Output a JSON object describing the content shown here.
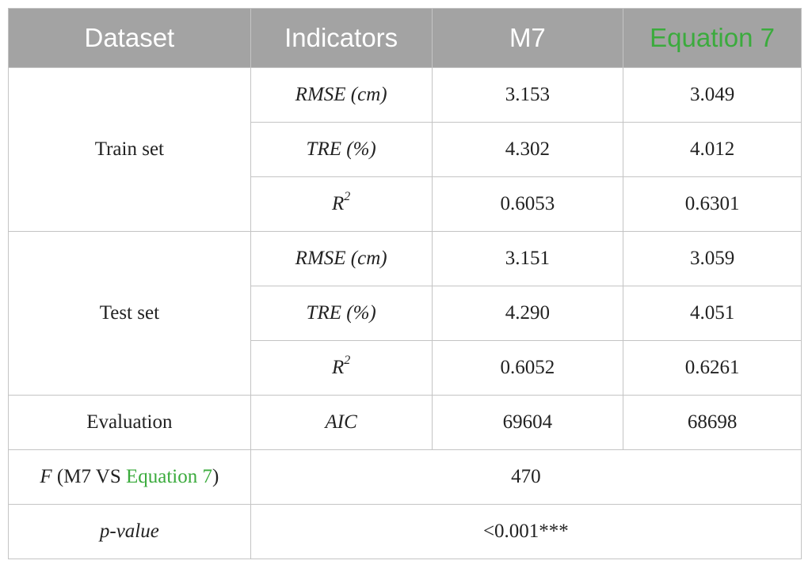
{
  "table": {
    "header": [
      "Dataset",
      "Indicators",
      "M7",
      "Equation 7"
    ],
    "train": {
      "label": "Train set",
      "rows": [
        [
          "RMSE (cm)",
          "3.153",
          "3.049"
        ],
        [
          "TRE (%)",
          "4.302",
          "4.012"
        ],
        [
          {
            "base": "R",
            "sup": "2"
          },
          "0.6053",
          "0.6301"
        ]
      ]
    },
    "test": {
      "label": "Test set",
      "rows": [
        [
          "RMSE (cm)",
          "3.151",
          "3.059"
        ],
        [
          "TRE (%)",
          "4.290",
          "4.051"
        ],
        [
          {
            "base": "R",
            "sup": "2"
          },
          "0.6052",
          "0.6261"
        ]
      ]
    },
    "evaluation": [
      "Evaluation",
      "AIC",
      "69604",
      "68698"
    ],
    "f_test": {
      "label": {
        "symbol": "F",
        "open": " (M7 VS ",
        "model": "Equation 7",
        "close": ")"
      },
      "value": "470"
    },
    "p_value": {
      "label": "p-value",
      "value": "<0.001***"
    }
  }
}
